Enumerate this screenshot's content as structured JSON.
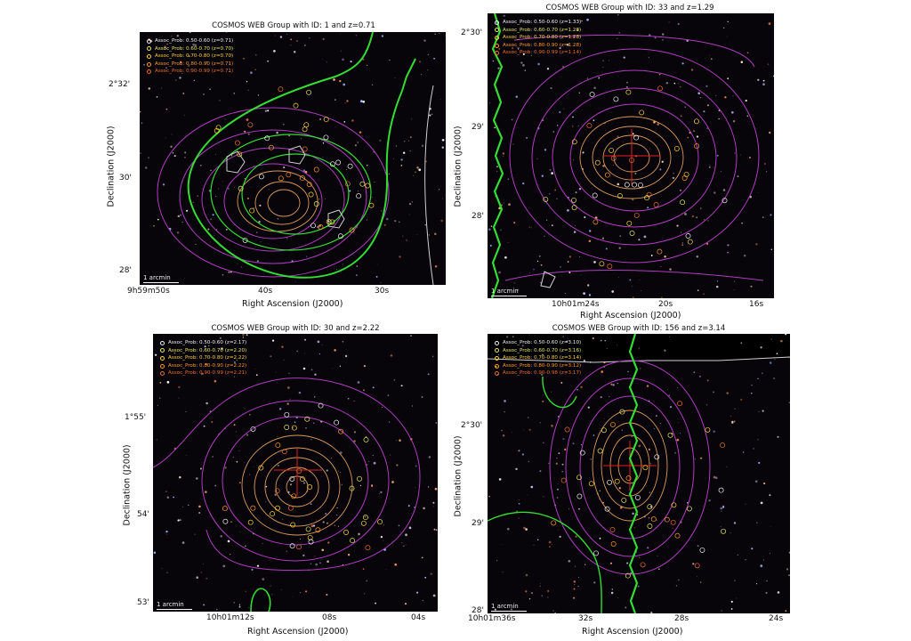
{
  "panels": [
    {
      "title": "COSMOS WEB Group with ID: 1 and z=0.71",
      "legend": [
        "Assoc_Prob: 0.50-0.60 (z=0.71)",
        "Assoc_Prob: 0.60-0.70 (z=0.70)",
        "Assoc_Prob: 0.70-0.80 (z=0.70)",
        "Assoc_Prob: 0.80-0.90 (z=0.71)",
        "Assoc_Prob: 0.90-0.99 (z=0.71)"
      ],
      "xlabel": "Right Ascension (J2000)",
      "ylabel": "Declination (J2000)",
      "xticks": [
        "9h59m50s",
        "40s",
        "30s"
      ],
      "yticks": [
        "2°32'",
        "30'",
        "28'"
      ],
      "scalebar": "1 arcmin"
    },
    {
      "title": "COSMOS WEB Group with ID: 33 and z=1.29",
      "legend": [
        "Assoc_Prob: 0.50-0.60 (z=1.33)",
        "Assoc_Prob: 0.60-0.70 (z=1.28)",
        "Assoc_Prob: 0.70-0.80 (z=1.28)",
        "Assoc_Prob: 0.80-0.90 (z=1.28)",
        "Assoc_Prob: 0.90-0.99 (z=1.14)"
      ],
      "xlabel": "Right Ascension (J2000)",
      "ylabel": "Declination (J2000)",
      "xticks": [
        "10h01m24s",
        "20s",
        "16s"
      ],
      "yticks": [
        "2°30'",
        "29'",
        "28'"
      ],
      "scalebar": "1 arcmin"
    },
    {
      "title": "COSMOS WEB Group with ID: 30 and z=2.22",
      "legend": [
        "Assoc_Prob: 0.50-0.60 (z=2.17)",
        "Assoc_Prob: 0.60-0.70 (z=2.20)",
        "Assoc_Prob: 0.70-0.80 (z=2.22)",
        "Assoc_Prob: 0.80-0.90 (z=2.22)",
        "Assoc_Prob: 0.90-0.99 (z=2.21)"
      ],
      "xlabel": "Right Ascension (J2000)",
      "ylabel": "Declination (J2000)",
      "xticks": [
        "10h01m12s",
        "08s",
        "04s"
      ],
      "yticks": [
        "1°55'",
        "54'",
        "53'"
      ],
      "scalebar": "1 arcmin"
    },
    {
      "title": "COSMOS WEB Group with ID: 156 and z=3.14",
      "legend": [
        "Assoc_Prob: 0.50-0.60 (z=3.10)",
        "Assoc_Prob: 0.60-0.70 (z=3.16)",
        "Assoc_Prob: 0.70-0.80 (z=3.14)",
        "Assoc_Prob: 0.80-0.90 (z=3.12)",
        "Assoc_Prob: 0.90-0.98 (z=3.17)"
      ],
      "xlabel": "Right Ascension (J2000)",
      "ylabel": "Declination (J2000)",
      "xticks": [
        "10h01m36s",
        "32s",
        "28s",
        "24s"
      ],
      "yticks": [
        "2°30'",
        "29'",
        "28'"
      ],
      "scalebar": "1 arcmin"
    }
  ],
  "colors": {
    "legend_markers": [
      "#f2f2f2",
      "#e8e860",
      "#ffd23a",
      "#ff9a2a",
      "#e8702a"
    ],
    "contour_magenta": "#b03cc0",
    "contour_orange": "#d89a5a",
    "contour_green": "#33dd33",
    "contour_white": "#d0d0d0",
    "center_cross": "#e02020"
  }
}
